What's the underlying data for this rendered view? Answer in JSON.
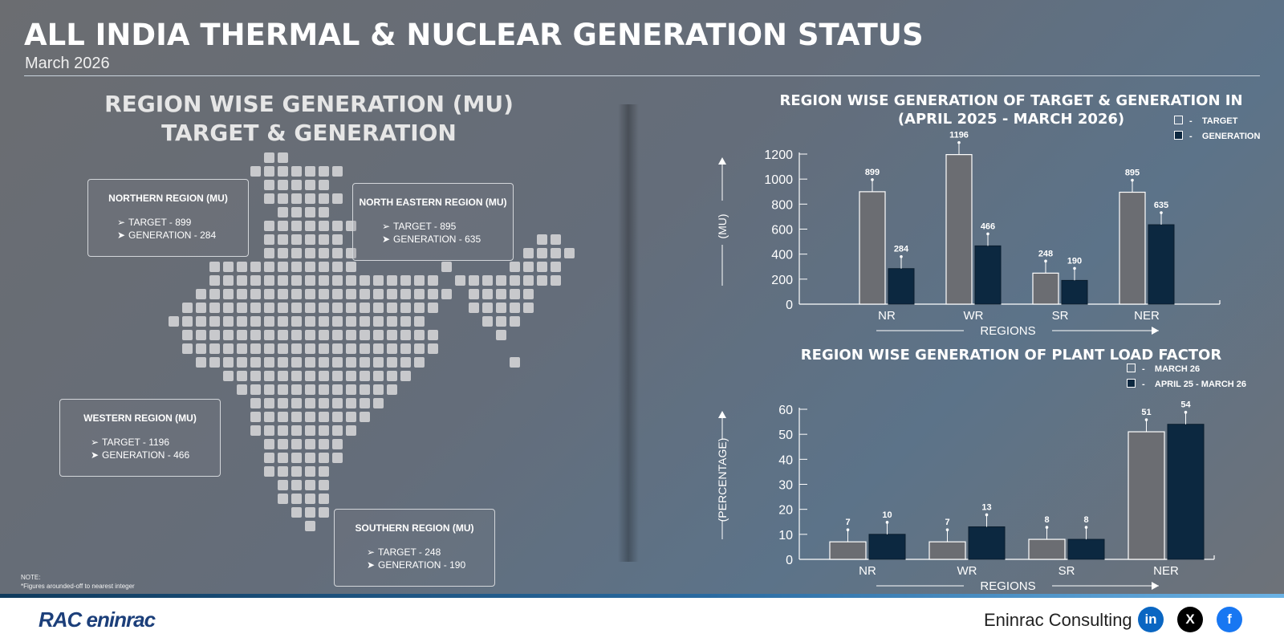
{
  "header": {
    "title": "ALL INDIA THERMAL & NUCLEAR GENERATION STATUS",
    "subtitle": "March 2026"
  },
  "map_section": {
    "title_line1": "REGION WISE GENERATION (MU)",
    "title_line2": "TARGET & GENERATION",
    "regions": [
      {
        "name": "NORTHERN REGION (MU)",
        "target": "TARGET - 899",
        "generation": "GENERATION - 284"
      },
      {
        "name": "NORTH EASTERN REGION (MU)",
        "target": "TARGET - 895",
        "generation": "GENERATION - 635"
      },
      {
        "name": "WESTERN REGION (MU)",
        "target": "TARGET - 1196",
        "generation": "GENERATION - 466"
      },
      {
        "name": "SOUTHERN REGION (MU)",
        "target": "TARGET - 248",
        "generation": "GENERATION - 190"
      }
    ],
    "note_line1": "NOTE:",
    "note_line2": "*Figures arounded-off to nearest integer"
  },
  "chart_data": [
    {
      "type": "bar",
      "title": "REGION WISE GENERATION OF TARGET & GENERATION IN (APRIL 2025 - MARCH 2026)",
      "title_line1": "REGION WISE GENERATION OF TARGET & GENERATION IN",
      "title_line2": "(APRIL 2025 - MARCH 2026)",
      "categories": [
        "NR",
        "WR",
        "SR",
        "NER"
      ],
      "series": [
        {
          "name": "TARGET",
          "values": [
            899,
            1196,
            248,
            895
          ],
          "color": "#6b6d72"
        },
        {
          "name": "GENERATION",
          "values": [
            284,
            466,
            190,
            635
          ],
          "color": "#0c2840"
        }
      ],
      "legend_markers": [
        "-",
        "-"
      ],
      "xlabel": "REGIONS",
      "ylabel": "(MU)",
      "ylim": [
        0,
        1200
      ],
      "yticks": [
        0,
        200,
        400,
        600,
        800,
        1000,
        1200
      ],
      "legend_position": "top-right",
      "grid": false
    },
    {
      "type": "bar",
      "title": "REGION WISE GENERATION OF PLANT LOAD FACTOR",
      "categories": [
        "NR",
        "WR",
        "SR",
        "NER"
      ],
      "series": [
        {
          "name": "MARCH 26",
          "values": [
            7,
            7,
            8,
            51
          ],
          "color": "#6b6d72"
        },
        {
          "name": "APRIL 25 - MARCH 26",
          "values": [
            10,
            13,
            8,
            54
          ],
          "color": "#0c2840"
        }
      ],
      "legend_markers": [
        "-",
        "-"
      ],
      "xlabel": "REGIONS",
      "ylabel": "(PERCENTAGE)",
      "ylim": [
        0,
        60
      ],
      "yticks": [
        0,
        10,
        20,
        30,
        40,
        50,
        60
      ],
      "legend_position": "top-right",
      "grid": false
    }
  ],
  "footer": {
    "brand_text": "RAC eninrac",
    "company": "Eninrac Consulting",
    "social": [
      {
        "name": "linkedin",
        "glyph": "in"
      },
      {
        "name": "x",
        "glyph": "X"
      },
      {
        "name": "facebook",
        "glyph": "f"
      }
    ]
  }
}
